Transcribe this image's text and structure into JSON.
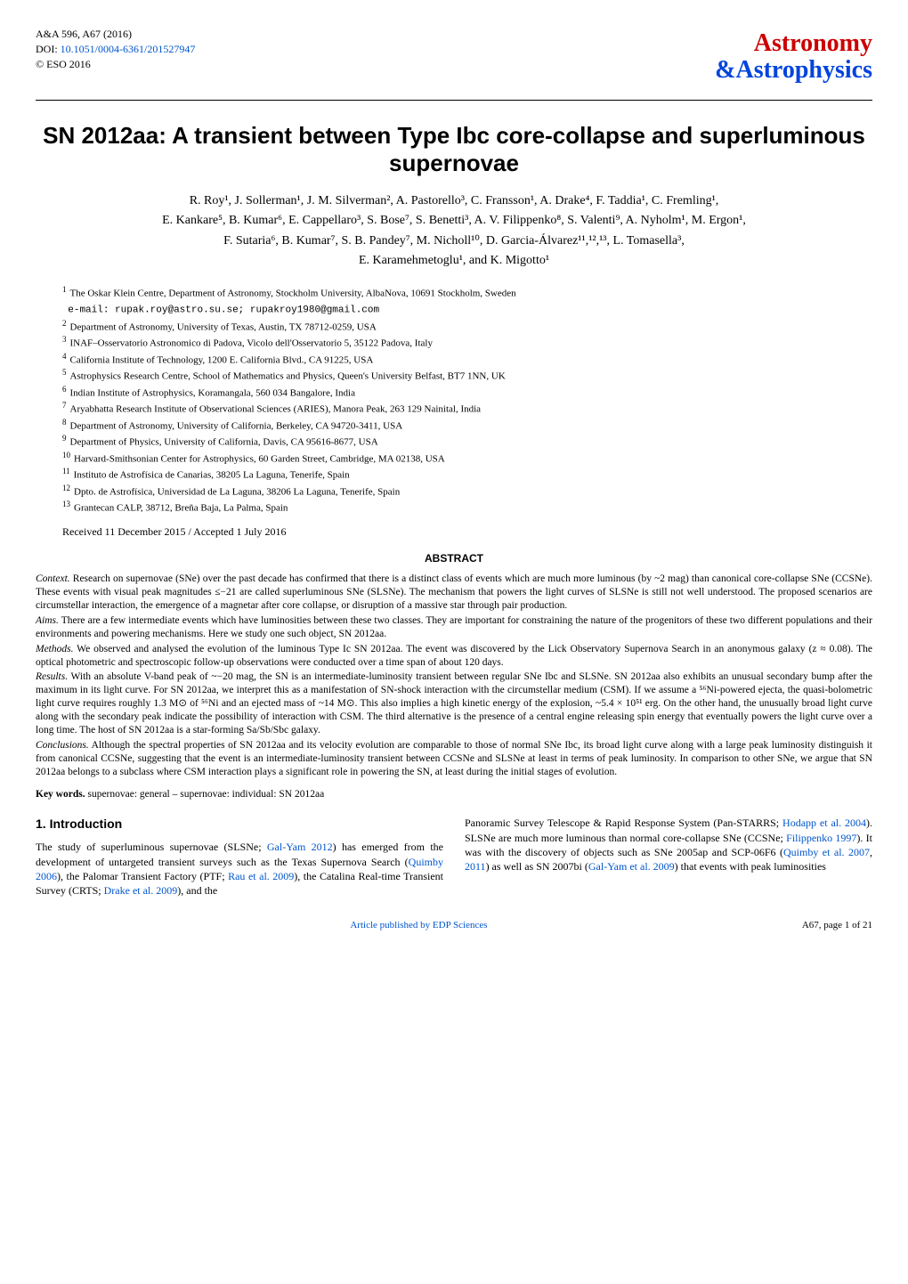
{
  "header": {
    "journal_ref": "A&A 596, A67 (2016)",
    "doi_prefix": "DOI: ",
    "doi": "10.1051/0004-6361/201527947",
    "copyright": "© ESO 2016",
    "logo_top": "Astronomy",
    "logo_amp": "&",
    "logo_bottom": "Astrophysics",
    "logo_color_top": "#cc0000",
    "logo_color_bottom": "#0044dd"
  },
  "title": "SN 2012aa: A transient between Type Ibc core-collapse and superluminous supernovae",
  "authors_line1": "R. Roy¹, J. Sollerman¹, J. M. Silverman², A. Pastorello³, C. Fransson¹, A. Drake⁴, F. Taddia¹, C. Fremling¹,",
  "authors_line2": "E. Kankare⁵, B. Kumar⁶, E. Cappellaro³, S. Bose⁷, S. Benetti³, A. V. Filippenko⁸, S. Valenti⁹, A. Nyholm¹, M. Ergon¹,",
  "authors_line3": "F. Sutaria⁶, B. Kumar⁷, S. B. Pandey⁷, M. Nicholl¹⁰, D. Garcia-Álvarez¹¹,¹²,¹³, L. Tomasella³,",
  "authors_line4": "E. Karamehmetoglu¹, and K. Migotto¹",
  "affiliations": [
    {
      "n": "1",
      "text": "The Oskar Klein Centre, Department of Astronomy, Stockholm University, AlbaNova, 10691 Stockholm, Sweden"
    },
    {
      "n": "",
      "text": "e-mail: rupak.roy@astro.su.se; rupakroy1980@gmail.com",
      "email": true
    },
    {
      "n": "2",
      "text": "Department of Astronomy, University of Texas, Austin, TX 78712-0259, USA"
    },
    {
      "n": "3",
      "text": "INAF–Osservatorio Astronomico di Padova, Vicolo dell'Osservatorio 5, 35122 Padova, Italy"
    },
    {
      "n": "4",
      "text": "California Institute of Technology, 1200 E. California Blvd., CA 91225, USA"
    },
    {
      "n": "5",
      "text": "Astrophysics Research Centre, School of Mathematics and Physics, Queen's University Belfast, BT7 1NN, UK"
    },
    {
      "n": "6",
      "text": "Indian Institute of Astrophysics, Koramangala, 560 034 Bangalore, India"
    },
    {
      "n": "7",
      "text": "Aryabhatta Research Institute of Observational Sciences (ARIES), Manora Peak, 263 129 Nainital, India"
    },
    {
      "n": "8",
      "text": "Department of Astronomy, University of California, Berkeley, CA 94720-3411, USA"
    },
    {
      "n": "9",
      "text": "Department of Physics, University of California, Davis, CA 95616-8677, USA"
    },
    {
      "n": "10",
      "text": "Harvard-Smithsonian Center for Astrophysics, 60 Garden Street, Cambridge, MA 02138, USA"
    },
    {
      "n": "11",
      "text": "Instituto de Astrofísica de Canarias, 38205 La Laguna, Tenerife, Spain"
    },
    {
      "n": "12",
      "text": "Dpto. de Astrofísica, Universidad de La Laguna, 38206 La Laguna, Tenerife, Spain"
    },
    {
      "n": "13",
      "text": "Grantecan CALP, 38712, Breña Baja, La Palma, Spain"
    }
  ],
  "received": "Received 11 December 2015 / Accepted 1 July 2016",
  "abstract_heading": "ABSTRACT",
  "abstract": {
    "context_label": "Context.",
    "context": " Research on supernovae (SNe) over the past decade has confirmed that there is a distinct class of events which are much more luminous (by ~2 mag) than canonical core-collapse SNe (CCSNe). These events with visual peak magnitudes ≤−21 are called superluminous SNe (SLSNe). The mechanism that powers the light curves of SLSNe is still not well understood. The proposed scenarios are circumstellar interaction, the emergence of a magnetar after core collapse, or disruption of a massive star through pair production.",
    "aims_label": "Aims.",
    "aims": " There are a few intermediate events which have luminosities between these two classes. They are important for constraining the nature of the progenitors of these two different populations and their environments and powering mechanisms. Here we study one such object, SN 2012aa.",
    "methods_label": "Methods.",
    "methods": " We observed and analysed the evolution of the luminous Type Ic SN 2012aa. The event was discovered by the Lick Observatory Supernova Search in an anonymous galaxy (z ≈ 0.08). The optical photometric and spectroscopic follow-up observations were conducted over a time span of about 120 days.",
    "results_label": "Results.",
    "results": " With an absolute V-band peak of ~−20 mag, the SN is an intermediate-luminosity transient between regular SNe Ibc and SLSNe. SN 2012aa also exhibits an unusual secondary bump after the maximum in its light curve. For SN 2012aa, we interpret this as a manifestation of SN-shock interaction with the circumstellar medium (CSM). If we assume a ⁵⁶Ni-powered ejecta, the quasi-bolometric light curve requires roughly 1.3 M⊙ of ⁵⁶Ni and an ejected mass of ~14 M⊙. This also implies a high kinetic energy of the explosion, ~5.4 × 10⁵¹ erg. On the other hand, the unusually broad light curve along with the secondary peak indicate the possibility of interaction with CSM. The third alternative is the presence of a central engine releasing spin energy that eventually powers the light curve over a long time. The host of SN 2012aa is a star-forming Sa/Sb/Sbc galaxy.",
    "conclusions_label": "Conclusions.",
    "conclusions": " Although the spectral properties of SN 2012aa and its velocity evolution are comparable to those of normal SNe Ibc, its broad light curve along with a large peak luminosity distinguish it from canonical CCSNe, suggesting that the event is an intermediate-luminosity transient between CCSNe and SLSNe at least in terms of peak luminosity. In comparison to other SNe, we argue that SN 2012aa belongs to a subclass where CSM interaction plays a significant role in powering the SN, at least during the initial stages of evolution."
  },
  "keywords_label": "Key words.",
  "keywords": " supernovae: general – supernovae: individual: SN 2012aa",
  "intro_heading": "1. Introduction",
  "intro_col1_pre": "The study of superluminous supernovae (SLSNe; ",
  "intro_cite1": "Gal-Yam 2012",
  "intro_col1_mid1": ") has emerged from the development of untargeted transient surveys such as the Texas Supernova Search (",
  "intro_cite2": "Quimby 2006",
  "intro_col1_mid2": "), the Palomar Transient Factory (PTF; ",
  "intro_cite3": "Rau et al. 2009",
  "intro_col1_mid3": "), the Catalina Real-time Transient Survey (CRTS; ",
  "intro_cite4": "Drake et al. 2009",
  "intro_col1_end": "), and the",
  "intro_col2_pre": "Panoramic Survey Telescope & Rapid Response System (Pan-STARRS; ",
  "intro_cite5": "Hodapp et al. 2004",
  "intro_col2_mid1": "). SLSNe are much more luminous than normal core-collapse SNe (CCSNe; ",
  "intro_cite6": "Filippenko 1997",
  "intro_col2_mid2": "). It was with the discovery of objects such as SNe 2005ap and SCP-06F6 (",
  "intro_cite7": "Quimby et al. 2007",
  "intro_col2_comma": ", ",
  "intro_cite8": "2011",
  "intro_col2_mid3": ") as well as SN 2007bi (",
  "intro_cite9": "Gal-Yam et al. 2009",
  "intro_col2_end": ") that events with peak luminosities",
  "footer_link": "Article published by EDP Sciences",
  "footer_page": "A67, page 1 of 21"
}
